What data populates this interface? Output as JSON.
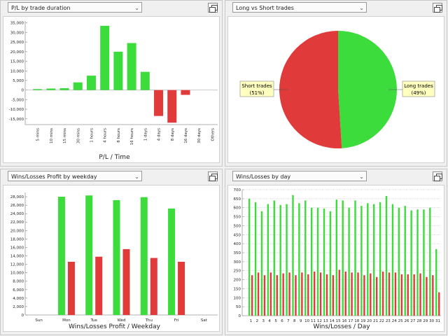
{
  "colors": {
    "green": "#3ddc3d",
    "red": "#e03a3a",
    "grid": "#bcbcbc"
  },
  "panels": {
    "p1": {
      "selector": "P/L by trade duration"
    },
    "p2": {
      "selector": "Long vs Short trades"
    },
    "p3": {
      "selector": "Wins/Losses Profit by weekday"
    },
    "p4": {
      "selector": "Wins/Losses by day"
    }
  },
  "chart_data": [
    {
      "type": "bar",
      "xlabel": "P/L / Time",
      "ylim": [
        -18000,
        36000
      ],
      "yticks": [
        35000,
        30000,
        25000,
        20000,
        15000,
        10000,
        5000,
        0,
        -5000,
        -10000,
        -15000
      ],
      "ytick_labels": [
        "35,000",
        "30,000",
        "25,000",
        "20,000",
        "15,000",
        "10,000",
        "5,000",
        "0",
        "-5,000",
        "-10,000",
        "-15,000"
      ],
      "categories": [
        "5 mins",
        "10 mins",
        "15 mins",
        "30 mins",
        "1 hours",
        "4 hours",
        "8 hours",
        "16 hours",
        "1 days",
        "4 days",
        "8 days",
        "16 days",
        "30 days",
        "Others"
      ],
      "values": [
        500,
        800,
        1000,
        4000,
        7500,
        33500,
        20000,
        24500,
        9500,
        -13500,
        -17000,
        -2500,
        0,
        0
      ]
    },
    {
      "type": "pie",
      "slices": [
        {
          "label": "Long trades",
          "pct_label": "(49%)",
          "value": 49,
          "color": "#3ddc3d"
        },
        {
          "label": "Short trades",
          "pct_label": "(51%)",
          "value": 51,
          "color": "#e03a3a"
        }
      ]
    },
    {
      "type": "bar",
      "xlabel": "Wins/Losses Profit / Weekday",
      "ylim": [
        0,
        29000
      ],
      "yticks": [
        28000,
        26000,
        24000,
        22000,
        20000,
        18000,
        16000,
        14000,
        12000,
        10000,
        8000,
        6000,
        4000,
        2000,
        0
      ],
      "ytick_labels": [
        "28,000",
        "26,000",
        "24,000",
        "22,000",
        "20,000",
        "18,000",
        "16,000",
        "14,000",
        "12,000",
        "10,000",
        "8,000",
        "6,000",
        "4,000",
        "2,000",
        "0"
      ],
      "categories": [
        "Sun",
        "Mon",
        "Tue",
        "Wed",
        "Thu",
        "Fri",
        "Sat"
      ],
      "series": [
        {
          "values": [
            0,
            28000,
            28300,
            27200,
            27900,
            25200,
            0
          ]
        },
        {
          "values": [
            0,
            12600,
            13800,
            15600,
            13500,
            12600,
            0
          ]
        }
      ]
    },
    {
      "type": "bar",
      "xlabel": "Wins/Losses / Day",
      "ylim": [
        0,
        700
      ],
      "yticks": [
        700,
        650,
        600,
        550,
        500,
        450,
        400,
        350,
        300,
        250,
        200,
        150,
        100,
        50,
        0
      ],
      "ytick_labels": [
        "700",
        "650",
        "600",
        "550",
        "500",
        "450",
        "400",
        "350",
        "300",
        "250",
        "200",
        "150",
        "100",
        "50",
        "0"
      ],
      "categories": [
        "1",
        "2",
        "3",
        "4",
        "5",
        "6",
        "7",
        "8",
        "9",
        "10",
        "11",
        "12",
        "13",
        "14",
        "15",
        "16",
        "17",
        "18",
        "19",
        "20",
        "21",
        "22",
        "23",
        "24",
        "25",
        "26",
        "27",
        "28",
        "29",
        "30",
        "31"
      ],
      "series": [
        {
          "values": [
            650,
            630,
            580,
            620,
            640,
            615,
            620,
            670,
            625,
            640,
            600,
            600,
            595,
            580,
            645,
            640,
            600,
            640,
            610,
            625,
            620,
            630,
            665,
            620,
            600,
            610,
            585,
            590,
            590,
            600,
            370
          ]
        },
        {
          "values": [
            225,
            240,
            225,
            240,
            225,
            235,
            240,
            225,
            240,
            230,
            245,
            240,
            230,
            225,
            255,
            245,
            240,
            240,
            225,
            235,
            215,
            245,
            240,
            240,
            230,
            230,
            230,
            235,
            215,
            225,
            130
          ]
        }
      ]
    }
  ]
}
